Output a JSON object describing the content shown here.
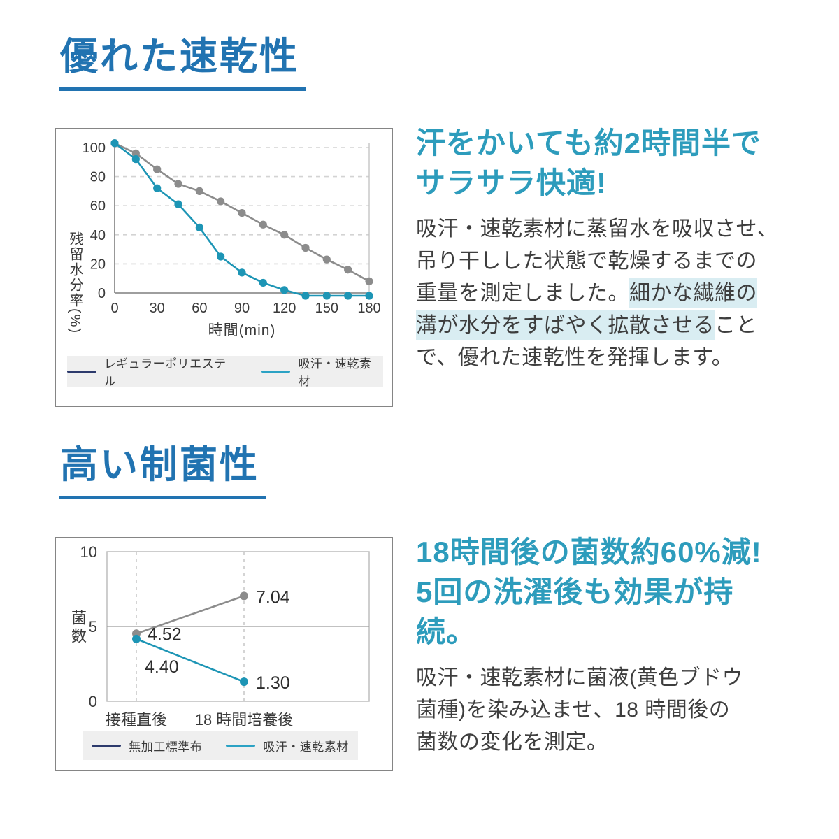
{
  "page": {
    "background": "#ffffff"
  },
  "colors": {
    "title_blue": "#2173b1",
    "subtitle_teal": "#2d9cbc",
    "body_text": "#3e3e3e",
    "highlight_bg": "#d9edf2",
    "chart_gray": "#8c8c8c",
    "chart_teal": "#1d95b5",
    "legend_navy": "#2c3a6c",
    "legend_teal": "#2ba2c4",
    "legend_bg": "#efefef",
    "axis": "#7f7f7f",
    "gridline": "#d3d3d3",
    "plot_border": "#b8b8b8",
    "tick_text": "#3a3a3a",
    "data_label_text": "#2b2b2b"
  },
  "section1": {
    "title": "優れた速乾性",
    "subtitle_lines": [
      "汗をかいても約2時間半で",
      "サラサラ快適!"
    ],
    "body_segments": [
      {
        "text": "吸汗・速乾素材に蒸留水を吸収させ、",
        "highlight": false,
        "br": true
      },
      {
        "text": "吊り干しした状態で乾燥するまでの",
        "highlight": false,
        "br": true
      },
      {
        "text": "重量を測定しました。",
        "highlight": false,
        "br": false
      },
      {
        "text": "細かな繊維の",
        "highlight": true,
        "br": true
      },
      {
        "text": "溝が水分をすばやく拡散させる",
        "highlight": true,
        "br": false
      },
      {
        "text": "こと",
        "highlight": false,
        "br": true
      },
      {
        "text": "で、優れた速乾性を発揮します。",
        "highlight": false,
        "br": false
      }
    ]
  },
  "section2": {
    "title": "高い制菌性",
    "subtitle_lines": [
      "18時間後の菌数約60%減!",
      "5回の洗濯後も効果が持続。"
    ],
    "body_segments": [
      {
        "text": "吸汗・速乾素材に菌液(黄色ブドウ",
        "highlight": false,
        "br": true
      },
      {
        "text": "菌種)を染み込ませ、18 時間後の",
        "highlight": false,
        "br": true
      },
      {
        "text": "菌数の変化を測定。",
        "highlight": false,
        "br": false
      }
    ]
  },
  "chart_data": [
    {
      "type": "line",
      "title": "",
      "xlabel": "時間(min)",
      "ylabel": "残留水分率(%)",
      "x": [
        0,
        15,
        30,
        45,
        60,
        75,
        90,
        105,
        120,
        135,
        150,
        165,
        180
      ],
      "xticks": [
        0,
        30,
        60,
        90,
        120,
        150,
        180
      ],
      "yticks": [
        0,
        20,
        40,
        60,
        80,
        100
      ],
      "xlim": [
        0,
        180
      ],
      "ylim": [
        0,
        100
      ],
      "grid": "dashed-horizontal",
      "legend_position": "bottom",
      "series": [
        {
          "name": "レギュラーポリエステル",
          "line_color": "#8c8c8c",
          "legend_color": "#2c3a6c",
          "values": [
            103,
            96,
            85,
            75,
            70,
            63,
            55,
            47,
            40,
            31,
            23,
            16,
            8
          ]
        },
        {
          "name": "吸汗・速乾素材",
          "line_color": "#1d95b5",
          "legend_color": "#2ba2c4",
          "values": [
            103,
            92,
            72,
            61,
            45,
            25,
            14,
            7,
            2,
            0,
            0,
            0,
            0
          ]
        }
      ]
    },
    {
      "type": "line",
      "title": "",
      "xlabel": "",
      "ylabel": "菌数",
      "categories": [
        "接種直後",
        "18 時間培養後"
      ],
      "yticks": [
        0,
        5,
        10
      ],
      "ylim": [
        0,
        10
      ],
      "grid": "dashed-vertical",
      "legend_position": "bottom",
      "series": [
        {
          "name": "無加工標準布",
          "line_color": "#8c8c8c",
          "legend_color": "#2c3a6c",
          "values": [
            4.52,
            7.04
          ],
          "point_labels": [
            "4.52",
            "7.04"
          ]
        },
        {
          "name": "吸汗・速乾素材",
          "line_color": "#1d95b5",
          "legend_color": "#2ba2c4",
          "values": [
            4.4,
            1.3
          ],
          "point_labels": [
            "4.40",
            "1.30"
          ]
        }
      ]
    }
  ]
}
